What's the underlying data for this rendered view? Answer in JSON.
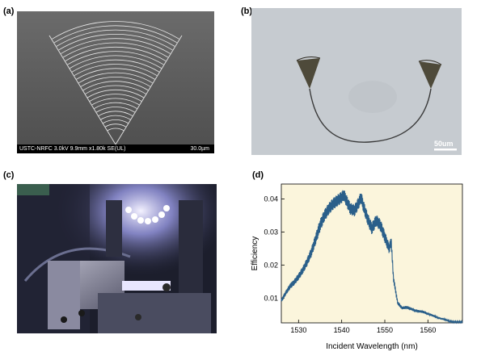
{
  "panels": {
    "a": {
      "label": "(a)",
      "sem_info": "USTC-NRFC 3.0kV 9.9mm x1.80k SE(UL)",
      "sem_scale": "30.0µm"
    },
    "b": {
      "label": "(b)",
      "scale": "50um"
    },
    "c": {
      "label": "(c)"
    },
    "d": {
      "label": "(d)"
    }
  },
  "chart_data": {
    "type": "line",
    "xlabel": "Incident Wavelength (nm)",
    "ylabel": "Efficiency",
    "xlim": [
      1526,
      1568
    ],
    "ylim": [
      0.0025,
      0.0445
    ],
    "xticks": [
      1530,
      1540,
      1550,
      1560
    ],
    "yticks": [
      0.01,
      0.02,
      0.03,
      0.04
    ],
    "background": "#fbf5dc",
    "line_color": "#2a5f8a",
    "series": [
      {
        "x": [
          1526,
          1527,
          1528,
          1529,
          1530,
          1531,
          1532,
          1533,
          1534,
          1535,
          1536,
          1537,
          1538,
          1539,
          1540,
          1540.5,
          1541,
          1542,
          1543,
          1544,
          1544.5,
          1545,
          1546,
          1547,
          1548,
          1549,
          1550,
          1551,
          1551.5,
          1552,
          1553,
          1554,
          1555,
          1556,
          1557,
          1558,
          1559,
          1560,
          1561,
          1562,
          1563,
          1564,
          1565,
          1566,
          1567,
          1568
        ],
        "y": [
          0.0092,
          0.0115,
          0.0135,
          0.0148,
          0.0165,
          0.0185,
          0.021,
          0.024,
          0.028,
          0.032,
          0.035,
          0.037,
          0.0385,
          0.0395,
          0.0405,
          0.0412,
          0.0398,
          0.037,
          0.0365,
          0.039,
          0.0405,
          0.038,
          0.034,
          0.031,
          0.0335,
          0.032,
          0.0285,
          0.025,
          0.027,
          0.016,
          0.0085,
          0.007,
          0.0072,
          0.0068,
          0.0062,
          0.006,
          0.0058,
          0.0052,
          0.0048,
          0.0042,
          0.0038,
          0.0035,
          0.003,
          0.0028,
          0.0028,
          0.0028
        ]
      }
    ]
  }
}
